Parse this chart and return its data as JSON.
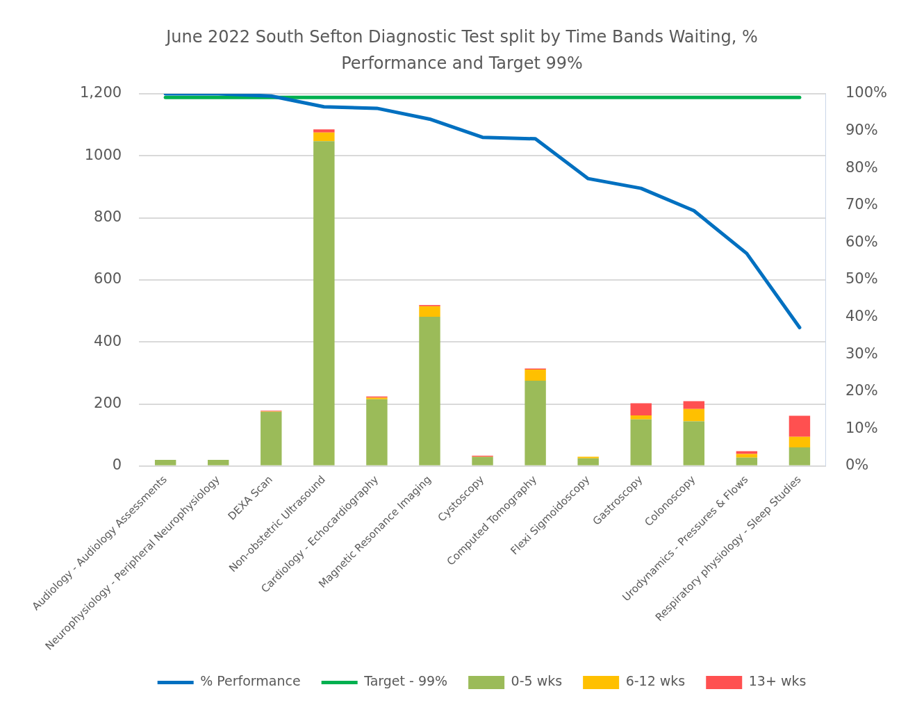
{
  "chart_data": {
    "type": "bar",
    "title": "June 2022 South Sefton Diagnostic Test split by Time Bands Waiting, % Performance and Target 99%",
    "categories": [
      "Audiology - Audiology Assessments",
      "Neurophysiology - Peripheral Neurophysiology",
      "DEXA Scan",
      "Non-obstetric Ultrasound",
      "Cardiology - Echocardiography",
      "Magnetic Resonance Imaging",
      "Cystoscopy",
      "Computed Tomography",
      "Flexi Sigmoidoscopy",
      "Gastroscopy",
      "Colonoscopy",
      "Urodynamics - Pressures & Flows",
      "Respiratory physiology - Sleep Studies"
    ],
    "stacked": true,
    "series": [
      {
        "name": "0-5 wks",
        "color": "#9bbb59",
        "values": [
          20,
          20,
          175,
          1047,
          215,
          481,
          29,
          275,
          25,
          150,
          144,
          27,
          60
        ]
      },
      {
        "name": "6-12 wks",
        "color": "#ffc000",
        "values": [
          0,
          0,
          1,
          28,
          5,
          34,
          1,
          36,
          5,
          13,
          40,
          12,
          34
        ]
      },
      {
        "name": "13+ wks",
        "color": "#ff5050",
        "values": [
          0,
          0,
          2,
          10,
          4,
          4,
          3,
          3,
          0,
          39,
          25,
          9,
          68
        ]
      },
      {
        "name": "% Performance",
        "type": "line",
        "axis": "y2",
        "color": "#0070c0",
        "values": [
          100,
          100,
          99.4,
          96.5,
          96.1,
          93.2,
          88.3,
          87.9,
          77.2,
          74.6,
          68.6,
          57.1,
          37.2
        ]
      },
      {
        "name": "Target - 99%",
        "type": "line",
        "axis": "y2",
        "color": "#00b050",
        "values": [
          99,
          99,
          99,
          99,
          99,
          99,
          99,
          99,
          99,
          99,
          99,
          99,
          99
        ]
      }
    ],
    "ylim": [
      0,
      1200
    ],
    "yticks": [
      0,
      200,
      400,
      600,
      800,
      1000,
      {
        "value": 1200,
        "label": "1,200"
      }
    ],
    "y2lim": [
      0,
      100
    ],
    "y2ticks": [
      {
        "value": 0,
        "label": "0%"
      },
      {
        "value": 10,
        "label": "10%"
      },
      {
        "value": 20,
        "label": "20%"
      },
      {
        "value": 30,
        "label": "30%"
      },
      {
        "value": 40,
        "label": "40%"
      },
      {
        "value": 50,
        "label": "50%"
      },
      {
        "value": 60,
        "label": "60%"
      },
      {
        "value": 70,
        "label": "70%"
      },
      {
        "value": 80,
        "label": "80%"
      },
      {
        "value": 90,
        "label": "90%"
      },
      {
        "value": 100,
        "label": "100%"
      }
    ],
    "grid": "y",
    "legend": "bottom",
    "marker": "none",
    "line_style": "solid"
  }
}
